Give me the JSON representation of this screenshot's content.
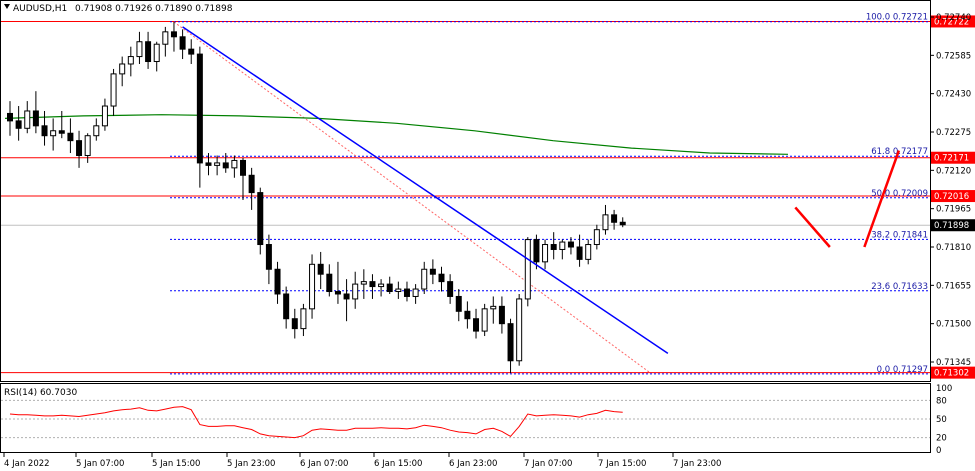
{
  "chart_data": {
    "type": "candlestick",
    "symbol": "AUDUSD,H1",
    "ohlc_header": "0.71908 0.71926 0.71890 0.71898",
    "colors": {
      "bull_fill": "#ffffff",
      "bear_fill": "#000000",
      "ma": "#008000",
      "trend": "#0000ff",
      "fib": "#0000ff",
      "hline": "#ff0000",
      "rsi": "#ff0000",
      "arrow": "#ff0000",
      "current_bg": "#000000",
      "hline_bg": "#ff0000",
      "dotted": "#ff6666"
    },
    "price_axis": {
      "min": 0.7125,
      "max": 0.7278,
      "ticks": [
        "0.72740",
        "0.72585",
        "0.72430",
        "0.72275",
        "0.72120",
        "0.71965",
        "0.71810",
        "0.71655",
        "0.71500",
        "0.71345"
      ]
    },
    "time_labels": [
      "4 Jan 2022",
      "5 Jan 07:00",
      "5 Jan 15:00",
      "5 Jan 23:00",
      "6 Jan 07:00",
      "6 Jan 15:00",
      "6 Jan 23:00",
      "7 Jan 07:00",
      "7 Jan 15:00",
      "7 Jan 23:00"
    ],
    "horizontal_levels": [
      {
        "price": 0.72722,
        "label": "0.72722"
      },
      {
        "price": 0.72171,
        "label": "0.72171"
      },
      {
        "price": 0.72016,
        "label": "0.72016"
      },
      {
        "price": 0.71302,
        "label": "0.71302"
      }
    ],
    "current_price": {
      "price": 0.71898,
      "label": "0.71898"
    },
    "fibonacci": [
      {
        "level": "100.0",
        "price": 0.72721,
        "label": "100.0 0.72721"
      },
      {
        "level": "61.8",
        "price": 0.72177,
        "label": "61.8 0.72177"
      },
      {
        "level": "50.0",
        "price": 0.72009,
        "label": "50.0 0.72009"
      },
      {
        "level": "38.2",
        "price": 0.71841,
        "label": "38.2 0.71841"
      },
      {
        "level": "23.6",
        "price": 0.71633,
        "label": "23.6 0.71633"
      },
      {
        "level": "0.0",
        "price": 0.71297,
        "label": "0.0 0.71297"
      }
    ],
    "candles": [
      [
        0.7235,
        0.724,
        0.7226,
        0.7232
      ],
      [
        0.7232,
        0.7238,
        0.7224,
        0.7229
      ],
      [
        0.7229,
        0.724,
        0.7227,
        0.7236
      ],
      [
        0.7236,
        0.7244,
        0.7227,
        0.723
      ],
      [
        0.723,
        0.7236,
        0.7222,
        0.7226
      ],
      [
        0.7226,
        0.7233,
        0.722,
        0.7228
      ],
      [
        0.7228,
        0.7236,
        0.7225,
        0.7227
      ],
      [
        0.7227,
        0.7233,
        0.7219,
        0.7224
      ],
      [
        0.7224,
        0.7228,
        0.7213,
        0.7218
      ],
      [
        0.7218,
        0.7227,
        0.7215,
        0.7226
      ],
      [
        0.7226,
        0.7233,
        0.7224,
        0.723
      ],
      [
        0.723,
        0.7241,
        0.7228,
        0.7238
      ],
      [
        0.7238,
        0.7253,
        0.7234,
        0.7251
      ],
      [
        0.7251,
        0.7258,
        0.7246,
        0.7255
      ],
      [
        0.7255,
        0.7262,
        0.725,
        0.7258
      ],
      [
        0.7258,
        0.7268,
        0.7255,
        0.7264
      ],
      [
        0.7264,
        0.7268,
        0.7253,
        0.7256
      ],
      [
        0.7256,
        0.7264,
        0.7252,
        0.7263
      ],
      [
        0.7263,
        0.727,
        0.7258,
        0.7268
      ],
      [
        0.7268,
        0.7272,
        0.726,
        0.7266
      ],
      [
        0.7266,
        0.7269,
        0.7257,
        0.7261
      ],
      [
        0.7261,
        0.7265,
        0.7255,
        0.7259
      ],
      [
        0.7259,
        0.7262,
        0.7205,
        0.7215
      ],
      [
        0.7215,
        0.7219,
        0.721,
        0.7214
      ],
      [
        0.7214,
        0.7218,
        0.721,
        0.7215
      ],
      [
        0.7215,
        0.7219,
        0.7211,
        0.7213
      ],
      [
        0.7213,
        0.7218,
        0.7209,
        0.7216
      ],
      [
        0.7216,
        0.7217,
        0.72,
        0.721
      ],
      [
        0.721,
        0.7213,
        0.7196,
        0.7203
      ],
      [
        0.7203,
        0.7205,
        0.7178,
        0.7182
      ],
      [
        0.7182,
        0.7186,
        0.7166,
        0.7172
      ],
      [
        0.7172,
        0.7175,
        0.7158,
        0.7162
      ],
      [
        0.7162,
        0.7165,
        0.7148,
        0.7152
      ],
      [
        0.7152,
        0.7156,
        0.7144,
        0.7148
      ],
      [
        0.7148,
        0.7158,
        0.7145,
        0.7156
      ],
      [
        0.7156,
        0.7178,
        0.7152,
        0.7174
      ],
      [
        0.7174,
        0.7179,
        0.7164,
        0.717
      ],
      [
        0.717,
        0.7174,
        0.7161,
        0.7163
      ],
      [
        0.7163,
        0.7175,
        0.7158,
        0.7162
      ],
      [
        0.7162,
        0.7168,
        0.7151,
        0.716
      ],
      [
        0.716,
        0.7171,
        0.7156,
        0.7166
      ],
      [
        0.7166,
        0.7172,
        0.716,
        0.7167
      ],
      [
        0.7167,
        0.717,
        0.716,
        0.7165
      ],
      [
        0.7165,
        0.7168,
        0.7161,
        0.7166
      ],
      [
        0.7166,
        0.7169,
        0.7162,
        0.7163
      ],
      [
        0.7163,
        0.7167,
        0.716,
        0.7164
      ],
      [
        0.7164,
        0.7167,
        0.7159,
        0.7161
      ],
      [
        0.7161,
        0.7166,
        0.7158,
        0.7164
      ],
      [
        0.7164,
        0.7175,
        0.7162,
        0.7172
      ],
      [
        0.7172,
        0.7176,
        0.7166,
        0.717
      ],
      [
        0.717,
        0.7173,
        0.7163,
        0.7167
      ],
      [
        0.7167,
        0.717,
        0.7158,
        0.7161
      ],
      [
        0.7161,
        0.7164,
        0.7151,
        0.7155
      ],
      [
        0.7155,
        0.7159,
        0.7148,
        0.7152
      ],
      [
        0.7152,
        0.7156,
        0.7144,
        0.7147
      ],
      [
        0.7147,
        0.7158,
        0.7145,
        0.7156
      ],
      [
        0.7156,
        0.7161,
        0.715,
        0.7157
      ],
      [
        0.7157,
        0.7161,
        0.7146,
        0.715
      ],
      [
        0.715,
        0.7152,
        0.713,
        0.7135
      ],
      [
        0.7135,
        0.7162,
        0.7133,
        0.716
      ],
      [
        0.716,
        0.7185,
        0.7157,
        0.7184
      ],
      [
        0.7184,
        0.7186,
        0.7172,
        0.7175
      ],
      [
        0.7175,
        0.7184,
        0.7172,
        0.7182
      ],
      [
        0.7182,
        0.7187,
        0.7176,
        0.718
      ],
      [
        0.718,
        0.7184,
        0.7176,
        0.7183
      ],
      [
        0.7183,
        0.7185,
        0.7178,
        0.7181
      ],
      [
        0.7181,
        0.7186,
        0.7173,
        0.7176
      ],
      [
        0.7176,
        0.7184,
        0.7174,
        0.7182
      ],
      [
        0.7182,
        0.719,
        0.718,
        0.7188
      ],
      [
        0.7188,
        0.7198,
        0.7186,
        0.7194
      ],
      [
        0.7194,
        0.7196,
        0.7188,
        0.7191
      ],
      [
        0.7191,
        0.7193,
        0.7189,
        0.719
      ]
    ],
    "ma_points": [
      0.7233,
      0.7234,
      0.72345,
      0.7234,
      0.7233,
      0.7231,
      0.7228,
      0.7224,
      0.7221,
      0.7219,
      0.72185
    ],
    "trendline": {
      "from_index": 20,
      "from_price": 0.727,
      "to_index": 76,
      "to_price": 0.7138
    },
    "dotted_line": {
      "from_index": 19,
      "from_price": 0.7272,
      "to_index": 74,
      "to_price": 0.713
    },
    "arrows": [
      {
        "from_index": 91,
        "from_price": 0.7197,
        "to_index": 95,
        "to_price": 0.7181
      },
      {
        "from_index": 99,
        "from_price": 0.7181,
        "to_index": 103,
        "to_price": 0.722
      }
    ],
    "rsi": {
      "label": "RSI(14) 60.7030",
      "value": 60.703,
      "levels": [
        "100",
        "80",
        "50",
        "20",
        "0"
      ],
      "values": [
        58,
        57,
        57,
        56,
        55,
        55,
        56,
        55,
        54,
        56,
        58,
        60,
        63,
        65,
        66,
        68,
        64,
        63,
        66,
        69,
        70,
        65,
        41,
        38,
        38,
        39,
        39,
        36,
        33,
        26,
        23,
        22,
        21,
        20,
        23,
        32,
        34,
        33,
        32,
        32,
        35,
        35,
        35,
        36,
        35,
        35,
        34,
        36,
        40,
        38,
        36,
        32,
        29,
        28,
        26,
        33,
        35,
        30,
        22,
        38,
        58,
        55,
        56,
        57,
        56,
        55,
        53,
        57,
        59,
        64,
        62,
        61
      ]
    }
  }
}
